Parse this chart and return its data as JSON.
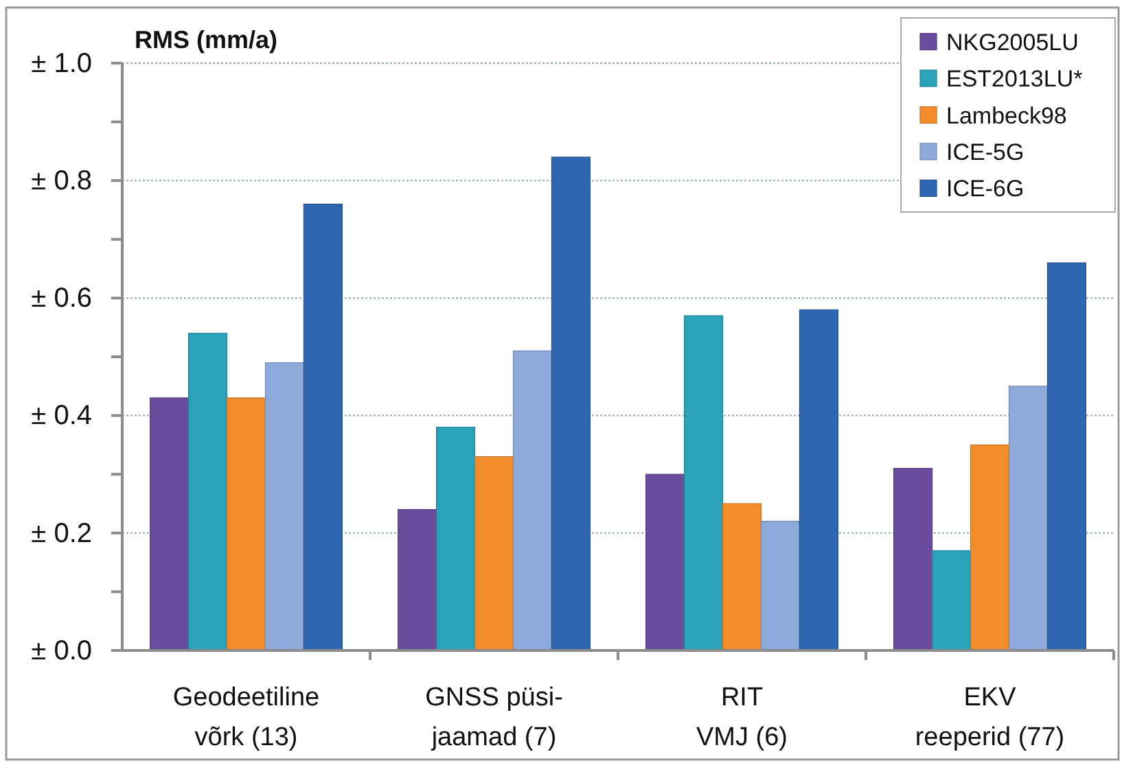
{
  "chart_data": {
    "type": "bar",
    "ylabel": "RMS (mm/a)",
    "categories": [
      "Geodeetiline\nvõrk (13)",
      "GNSS püsi-\njaamad (7)",
      "RIT\nVMJ (6)",
      "EKV\nreeperid (77)"
    ],
    "series": [
      {
        "name": "NKG2005LU",
        "color": "#6a4c9c",
        "values": [
          0.43,
          0.24,
          0.3,
          0.31
        ]
      },
      {
        "name": "EST2013LU*",
        "color": "#2aa3b9",
        "values": [
          0.54,
          0.38,
          0.57,
          0.17
        ]
      },
      {
        "name": "Lambeck98",
        "color": "#f28c2b",
        "values": [
          0.43,
          0.33,
          0.25,
          0.35
        ]
      },
      {
        "name": "ICE-5G",
        "color": "#8eaadb",
        "values": [
          0.49,
          0.51,
          0.22,
          0.45
        ]
      },
      {
        "name": "ICE-6G",
        "color": "#2f66b2",
        "values": [
          0.76,
          0.84,
          0.58,
          0.66
        ]
      }
    ],
    "ylim": [
      0,
      1
    ],
    "yticks": [
      {
        "value": 0,
        "label": "± 0.0"
      },
      {
        "value": 0.1,
        "label": null
      },
      {
        "value": 0.2,
        "label": "± 0.2"
      },
      {
        "value": 0.3,
        "label": null
      },
      {
        "value": 0.4,
        "label": "± 0.4"
      },
      {
        "value": 0.5,
        "label": null
      },
      {
        "value": 0.6,
        "label": "± 0.6"
      },
      {
        "value": 0.7,
        "label": null
      },
      {
        "value": 0.8,
        "label": "± 0.8"
      },
      {
        "value": 0.9,
        "label": null
      },
      {
        "value": 1,
        "label": "± 1.0"
      }
    ],
    "grid": "y",
    "legend": "top right"
  }
}
